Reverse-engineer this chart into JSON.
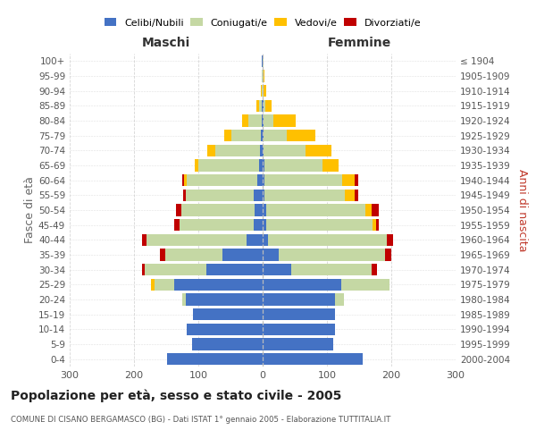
{
  "age_groups": [
    "0-4",
    "5-9",
    "10-14",
    "15-19",
    "20-24",
    "25-29",
    "30-34",
    "35-39",
    "40-44",
    "45-49",
    "50-54",
    "55-59",
    "60-64",
    "65-69",
    "70-74",
    "75-79",
    "80-84",
    "85-89",
    "90-94",
    "95-99",
    "100+"
  ],
  "birth_years": [
    "2000-2004",
    "1995-1999",
    "1990-1994",
    "1985-1989",
    "1980-1984",
    "1975-1979",
    "1970-1974",
    "1965-1969",
    "1960-1964",
    "1955-1959",
    "1950-1954",
    "1945-1949",
    "1940-1944",
    "1935-1939",
    "1930-1934",
    "1925-1929",
    "1920-1924",
    "1915-1919",
    "1910-1914",
    "1905-1909",
    "≤ 1904"
  ],
  "male_celibi": [
    148,
    110,
    118,
    108,
    120,
    138,
    88,
    62,
    25,
    14,
    12,
    14,
    8,
    5,
    4,
    3,
    2,
    1,
    0,
    0,
    1
  ],
  "male_coniugati": [
    0,
    0,
    0,
    1,
    5,
    30,
    95,
    90,
    155,
    115,
    115,
    105,
    110,
    95,
    70,
    45,
    20,
    5,
    2,
    1,
    1
  ],
  "male_vedovi": [
    0,
    0,
    0,
    0,
    0,
    5,
    0,
    0,
    0,
    0,
    0,
    0,
    4,
    5,
    12,
    12,
    10,
    4,
    1,
    0,
    0
  ],
  "male_divorziati": [
    0,
    0,
    0,
    0,
    0,
    0,
    5,
    8,
    8,
    8,
    8,
    5,
    3,
    0,
    0,
    0,
    0,
    0,
    0,
    0,
    0
  ],
  "female_celibi": [
    155,
    110,
    112,
    112,
    112,
    122,
    45,
    25,
    8,
    6,
    5,
    3,
    3,
    3,
    2,
    2,
    1,
    1,
    0,
    0,
    0
  ],
  "female_coniugati": [
    0,
    0,
    0,
    1,
    15,
    75,
    125,
    165,
    185,
    165,
    155,
    125,
    120,
    90,
    65,
    35,
    15,
    3,
    2,
    1,
    1
  ],
  "female_vedovi": [
    0,
    0,
    0,
    0,
    0,
    0,
    0,
    0,
    0,
    5,
    10,
    15,
    20,
    25,
    40,
    45,
    35,
    10,
    4,
    2,
    1
  ],
  "female_divorziati": [
    0,
    0,
    0,
    0,
    0,
    0,
    8,
    10,
    10,
    5,
    10,
    5,
    5,
    0,
    0,
    0,
    0,
    0,
    0,
    0,
    0
  ],
  "color_celibi": "#4472c4",
  "color_coniugati": "#c5d8a4",
  "color_vedovi": "#ffc000",
  "color_divorziati": "#c00000",
  "xlim": 300,
  "title": "Popolazione per età, sesso e stato civile - 2005",
  "subtitle": "COMUNE DI CISANO BERGAMASCO (BG) - Dati ISTAT 1° gennaio 2005 - Elaborazione TUTTITALIA.IT",
  "ylabel_left": "Fasce di età",
  "ylabel_right": "Anni di nascita",
  "xlabel_left": "Maschi",
  "xlabel_right": "Femmine",
  "bg_color": "#ffffff",
  "grid_color": "#cccccc"
}
